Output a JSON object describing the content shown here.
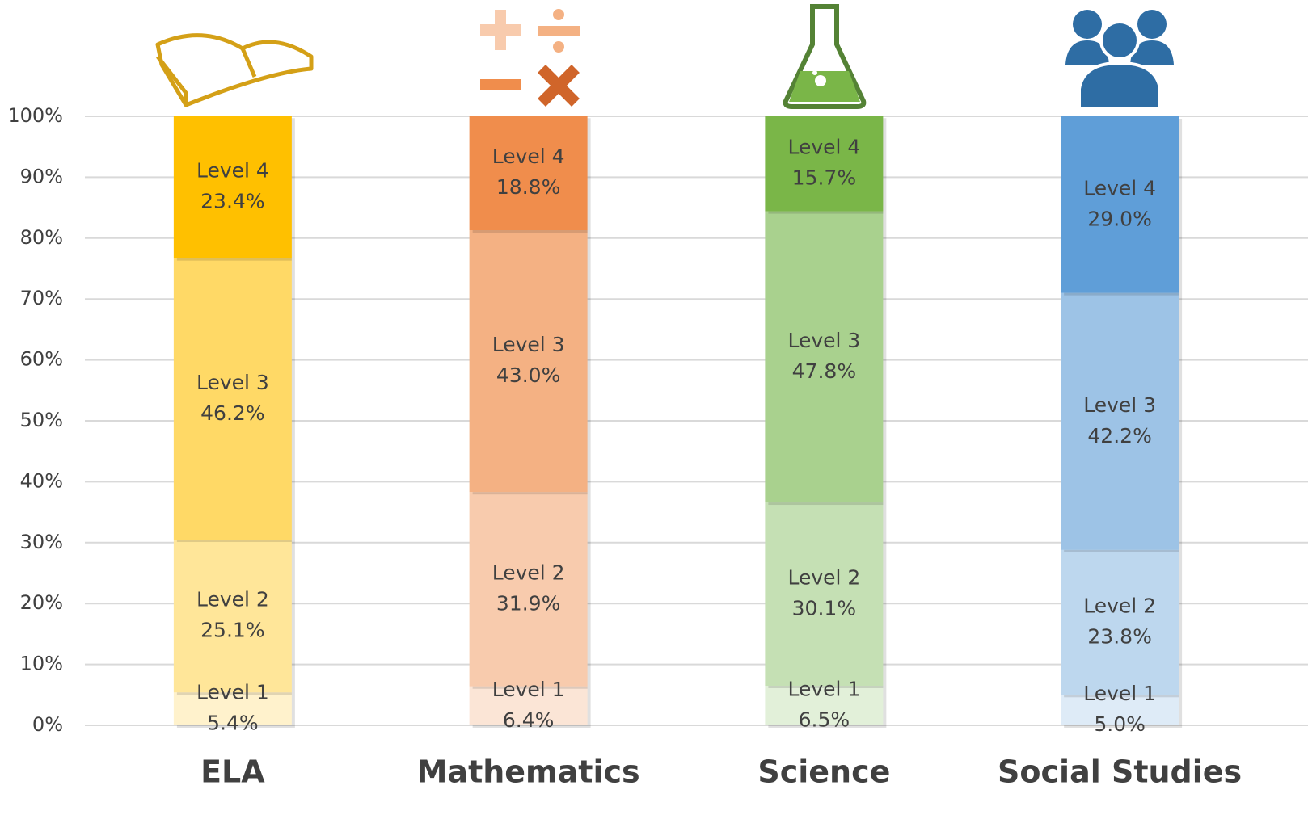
{
  "chart_data": {
    "type": "stacked_bar",
    "categories": [
      "ELA",
      "Mathematics",
      "Science",
      "Social Studies"
    ],
    "series": [
      {
        "name": "Level 1",
        "colors": [
          "#fff2cc",
          "#fbe5d6",
          "#e2f0d9",
          "#deebf7"
        ],
        "values": [
          5.4,
          6.4,
          6.5,
          5.0
        ],
        "value_labels": [
          "5.4%",
          "6.4%",
          "6.5%",
          "5.0%"
        ]
      },
      {
        "name": "Level 2",
        "colors": [
          "#ffe699",
          "#f8cbad",
          "#c5e0b4",
          "#bdd7ee"
        ],
        "values": [
          25.1,
          31.9,
          30.1,
          23.8
        ],
        "value_labels": [
          "25.1%",
          "31.9%",
          "30.1%",
          "23.8%"
        ]
      },
      {
        "name": "Level 3",
        "colors": [
          "#ffd966",
          "#f4b183",
          "#a9d18e",
          "#9dc3e6"
        ],
        "values": [
          46.2,
          43.0,
          47.8,
          42.2
        ],
        "value_labels": [
          "46.2%",
          "43.0%",
          "47.8%",
          "42.2%"
        ]
      },
      {
        "name": "Level 4",
        "colors": [
          "#ffc000",
          "#f08d4c",
          "#7ab648",
          "#5f9ed8"
        ],
        "values": [
          23.4,
          18.8,
          15.7,
          29.0
        ],
        "value_labels": [
          "23.4%",
          "18.8%",
          "15.7%",
          "29.0%"
        ]
      }
    ],
    "ylim": [
      0,
      100
    ],
    "yticks": [
      {
        "value": 0,
        "label": "0%"
      },
      {
        "value": 10,
        "label": "10%"
      },
      {
        "value": 20,
        "label": "20%"
      },
      {
        "value": 30,
        "label": "30%"
      },
      {
        "value": 40,
        "label": "40%"
      },
      {
        "value": 50,
        "label": "50%"
      },
      {
        "value": 60,
        "label": "60%"
      },
      {
        "value": 70,
        "label": "70%"
      },
      {
        "value": 80,
        "label": "80%"
      },
      {
        "value": 90,
        "label": "90%"
      },
      {
        "value": 100,
        "label": "100%"
      }
    ],
    "grid": true
  }
}
